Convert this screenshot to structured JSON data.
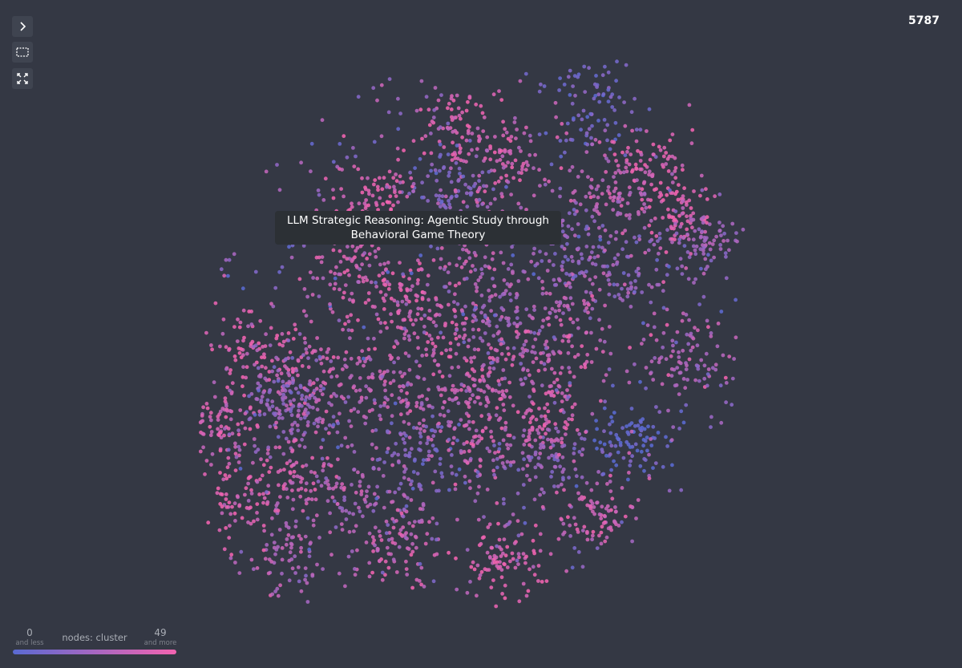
{
  "node_count": 5787,
  "tooltip": {
    "text": "LLM Strategic Reasoning: Agentic Study through Behavioral Game Theory"
  },
  "legend": {
    "label": "nodes: cluster",
    "min": 0,
    "min_note": "and less",
    "max": 49,
    "max_note": "and more",
    "colors": [
      "#5a6ad2",
      "#f263b0"
    ]
  }
}
